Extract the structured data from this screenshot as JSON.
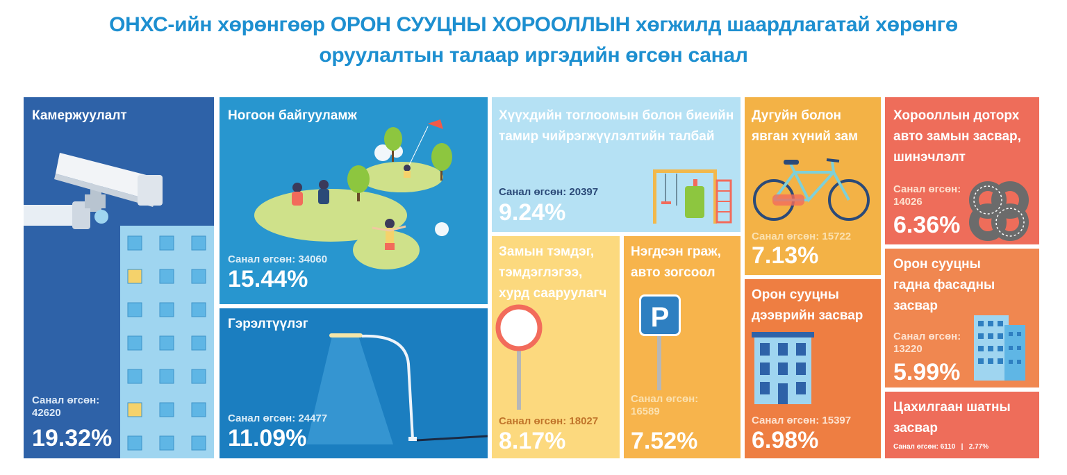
{
  "title": {
    "line1": "ОНХС-ийн хөрөнгөөр ОРОН СУУЦНЫ ХОРООЛЛЫН хөгжилд шаардлагатай хөрөнгө",
    "line2": "оруулалтын талаар иргэдийн өгсөн санал"
  },
  "colors": {
    "title": "#1d8fd0",
    "camera": "#2e62a8",
    "green": "#2896cf",
    "light": "#1b7ec0",
    "playground": "#b5e1f4",
    "signs": "#fcd97e",
    "parking": "#f7b44c",
    "bike": "#f3b246",
    "roof": "#ee7e42",
    "road": "#ee6d5a",
    "facade": "#f08750",
    "elevator": "#ee6d5a"
  },
  "tiles": {
    "camera": {
      "label": "Камержуулалт",
      "votes_line1": "Санал өгсөн:",
      "votes_line2": "42620",
      "percent": "19.32%",
      "icon": "cctv-camera-icon"
    },
    "green": {
      "label": "Ногоон байгууламж",
      "votes": "Санал өгсөн: 34060",
      "percent": "15.44%",
      "icon": "park-icon"
    },
    "lighting": {
      "label": "Гэрэлтүүлэг",
      "votes": "Санал өгсөн: 24477",
      "percent": "11.09%",
      "icon": "street-lamp-icon"
    },
    "playground": {
      "label_line1": "Хүүхдийн тоглоомын болон биеийн",
      "label_line2": "тамир чийрэгжүүлэлтийн талбай",
      "votes": "Санал өгсөн: 20397",
      "percent": "9.24%",
      "icon": "playground-icon"
    },
    "signs": {
      "label_line1": "Замын тэмдэг,",
      "label_line2": "тэмдэглэгээ,",
      "label_line3": "хурд сааруулагч",
      "votes": "Санал өгсөн: 18027",
      "percent": "8.17%",
      "icon": "road-sign-icon"
    },
    "parking": {
      "label_line1": "Нэгдсэн граж,",
      "label_line2": "авто зогсоол",
      "sign_letter": "P",
      "votes_line1": "Санал өгсөн:",
      "votes_line2": "16589",
      "percent": "7.52%",
      "icon": "parking-sign-icon"
    },
    "bike": {
      "label_line1": "Дугуйн болон",
      "label_line2": "явган хүний зам",
      "votes": "Санал өгсөн: 15722",
      "percent": "7.13%",
      "icon": "bicycle-icon"
    },
    "roof": {
      "label_line1": "Орон сууцны",
      "label_line2": "дээврийн засвар",
      "votes": "Санал өгсөн: 15397",
      "percent": "6.98%",
      "icon": "apartment-icon"
    },
    "road": {
      "label_line1": "Хорооллын доторх",
      "label_line2": "авто замын засвар,",
      "label_line3": "шинэчлэлт",
      "votes_line1": "Санал өгсөн:",
      "votes_line2": "14026",
      "percent": "6.36%",
      "icon": "road-junction-icon"
    },
    "facade": {
      "label_line1": "Орон сууцны",
      "label_line2": "гадна фасадны",
      "label_line3": "засвар",
      "votes_line1": "Санал өгсөн:",
      "votes_line2": "13220",
      "percent": "5.99%",
      "icon": "building-facade-icon"
    },
    "elevator": {
      "label_line1": "Цахилгаан шатны",
      "label_line2": "засвар",
      "footer": "Санал өгсөн: 6110   |   2.77%"
    }
  }
}
